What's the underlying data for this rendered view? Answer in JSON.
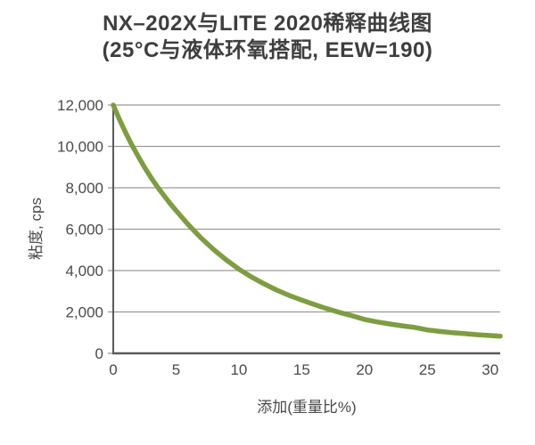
{
  "title": {
    "line1": "NX–202X与LITE 2020稀释曲线图",
    "line2": "(25°C与液体环氧搭配, EEW=190)"
  },
  "chart_data": {
    "type": "line",
    "title": "NX–202X与LITE 2020稀释曲线图",
    "subtitle": "(25°C与液体环氧搭配, EEW=190)",
    "xlabel": "添加(重量比%)",
    "ylabel": "粘度, cps",
    "xlim": [
      0,
      30.8
    ],
    "ylim": [
      0,
      12000
    ],
    "grid": "horizontal",
    "legend": "none",
    "xticks": {
      "values": [
        0,
        5,
        10,
        15,
        20,
        25,
        30
      ],
      "labels": [
        "0",
        "5",
        "10",
        "15",
        "20",
        "25",
        "30"
      ]
    },
    "yticks": {
      "values": [
        0,
        2000,
        4000,
        6000,
        8000,
        10000,
        12000
      ],
      "labels": [
        "0",
        "2,000",
        "4,000",
        "6,000",
        "8,000",
        "10,000",
        "12,000"
      ]
    },
    "series": [
      {
        "name": "NX-202X dilution curve",
        "x": [
          0,
          0.5,
          1,
          1.5,
          2,
          2.5,
          3,
          3.5,
          4,
          4.5,
          5,
          6,
          7,
          8,
          9,
          10,
          11,
          12,
          13,
          14,
          15,
          16,
          17,
          18,
          19,
          20,
          21,
          22,
          23,
          24,
          25,
          26,
          27,
          28,
          29,
          30,
          30.8
        ],
        "y": [
          12000,
          11300,
          10650,
          10050,
          9500,
          8980,
          8500,
          8060,
          7650,
          7260,
          6900,
          6200,
          5570,
          5010,
          4510,
          4070,
          3690,
          3360,
          3060,
          2800,
          2570,
          2360,
          2160,
          1980,
          1820,
          1640,
          1520,
          1420,
          1330,
          1250,
          1130,
          1060,
          1000,
          950,
          900,
          860,
          830
        ]
      }
    ]
  },
  "colors": {
    "curve": "#7e9d40",
    "grid": "#999999",
    "axis": "#5a5a5b",
    "tick_text": "#4a4a4a",
    "title_text": "#3e3e3e"
  }
}
